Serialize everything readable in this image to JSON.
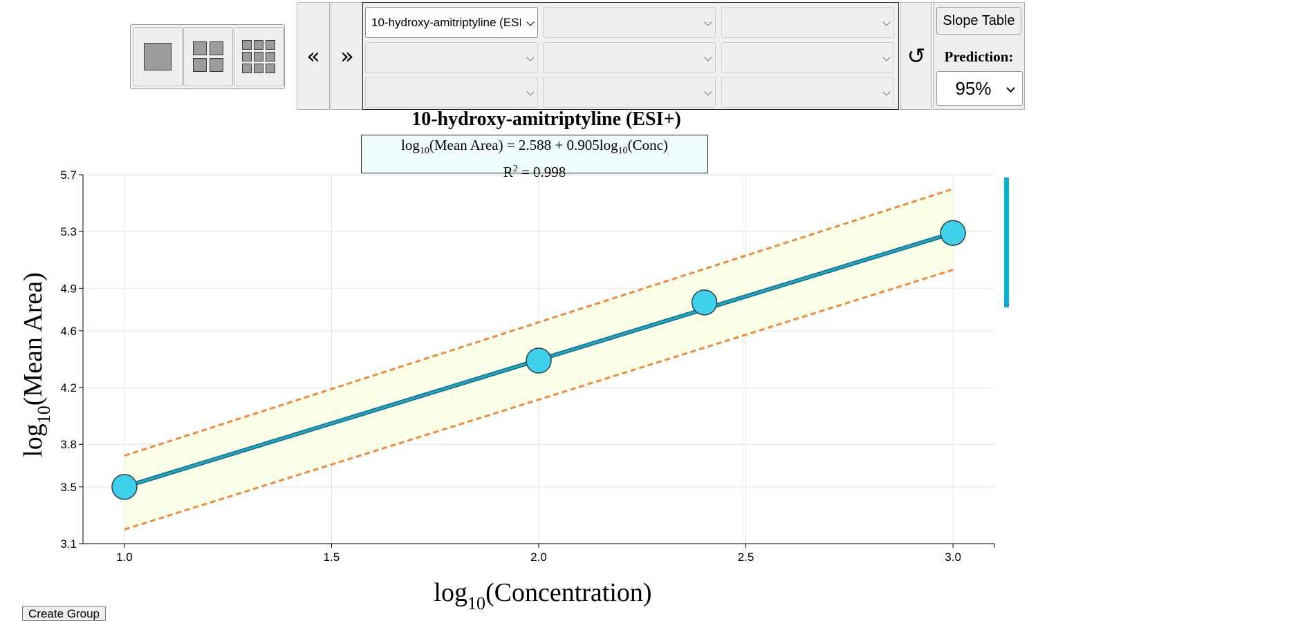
{
  "layout_buttons": [
    {
      "label": "1x1 layout"
    },
    {
      "label": "2x2 layout"
    },
    {
      "label": "3x3 layout"
    }
  ],
  "nav": {
    "prev": "«",
    "next": "»",
    "reset": "↺"
  },
  "selects": [
    {
      "value": "10-hydroxy-amitriptyline (ESI+)"
    },
    {
      "value": ""
    },
    {
      "value": ""
    },
    {
      "value": ""
    },
    {
      "value": ""
    },
    {
      "value": ""
    },
    {
      "value": ""
    },
    {
      "value": ""
    },
    {
      "value": ""
    }
  ],
  "slope_table_label": "Slope Table",
  "prediction": {
    "label": "Prediction:",
    "value": "95%"
  },
  "chart_title": "10-hydroxy-amitriptyline (ESI+)",
  "equation": {
    "lhs_prefix": "log",
    "lhs_sub": "10",
    "lhs_rest": "(Mean Area) = 2.588 + 0.905log",
    "rhs_sub": "10",
    "rhs_rest": "(Conc)",
    "r2_prefix": "R",
    "r2_sup": "2",
    "r2_rest": " = 0.998"
  },
  "create_group_label": "Create Group",
  "colors": {
    "line": "#1aa6c8",
    "point_fill": "#3fd0ec",
    "band_fill": "#fbffe8",
    "band_edge": "#f08a3c",
    "grid": "#e3e3e3"
  },
  "chart_data": {
    "type": "scatter",
    "title": "10-hydroxy-amitriptyline (ESI+)",
    "xlabel": {
      "prefix": "log",
      "sub": "10",
      "rest": "(Concentration)"
    },
    "ylabel": {
      "prefix": "log",
      "sub": "10",
      "rest": "(Mean Area)"
    },
    "xlim": [
      0.9,
      3.1
    ],
    "ylim": [
      3.1,
      5.7
    ],
    "x_ticks": [
      1.0,
      1.5,
      2.0,
      2.5,
      3.0
    ],
    "y_ticks": [
      3.1,
      3.5,
      3.8,
      4.2,
      4.6,
      4.9,
      5.3,
      5.7
    ],
    "x_tick_labels": [
      "1.0",
      "1.5",
      "2.0",
      "2.5",
      "3.0"
    ],
    "y_tick_labels": [
      "3.1",
      "3.5",
      "3.8",
      "4.2",
      "4.6",
      "4.9",
      "5.3",
      "5.7"
    ],
    "grid": true,
    "points": [
      {
        "x": 1.0,
        "y": 3.5
      },
      {
        "x": 2.0,
        "y": 4.39
      },
      {
        "x": 2.4,
        "y": 4.8
      },
      {
        "x": 3.0,
        "y": 5.29
      }
    ],
    "fit": {
      "intercept": 2.588,
      "slope": 0.905
    },
    "prediction_band": {
      "upper": [
        [
          1.0,
          3.72
        ],
        [
          3.0,
          5.6
        ]
      ],
      "lower": [
        [
          1.0,
          3.2
        ],
        [
          3.0,
          5.03
        ]
      ]
    }
  }
}
